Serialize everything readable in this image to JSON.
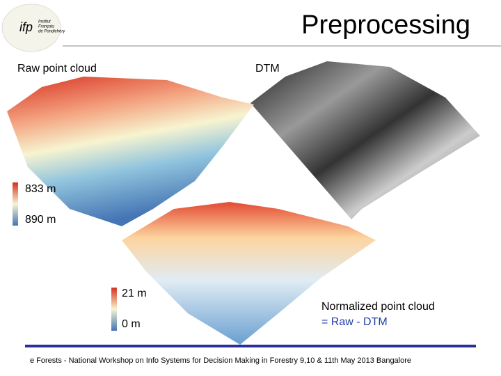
{
  "header": {
    "title": "Preprocessing",
    "logo": {
      "mark": "ifp",
      "lines": [
        "Institut",
        "Français",
        "de Pondichéry"
      ]
    }
  },
  "panels": {
    "raw": "Raw point cloud",
    "dtm": "DTM",
    "normalized": [
      "Normalized point cloud",
      "= Raw - DTM"
    ]
  },
  "legends": {
    "raw": [
      "833 m",
      "890 m"
    ],
    "normalized": [
      "21 m",
      "0 m"
    ]
  },
  "footer": "e Forests - National Workshop on Info Systems for Decision Making in Forestry 9,10 & 11th May 2013 Bangalore"
}
